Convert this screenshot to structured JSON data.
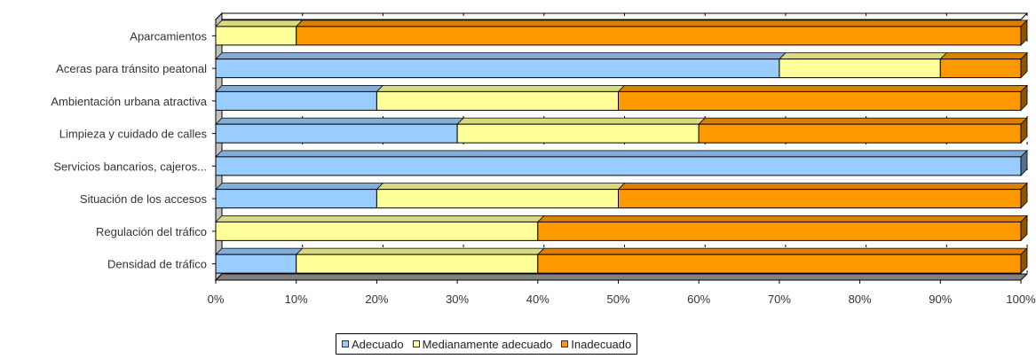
{
  "chart_data": {
    "type": "bar",
    "orientation": "horizontal",
    "stacked": "percent",
    "title": "",
    "xlabel": "",
    "ylabel": "",
    "categories": [
      "Aparcamientos",
      "Aceras para tránsito peatonal",
      "Ambientación urbana atractiva",
      "Limpieza y cuidado de calles",
      "Servicios bancarios, cajeros...",
      "Situación de los accesos",
      "Regulación del tráfico",
      "Densidad de tráfico"
    ],
    "series": [
      {
        "name": "Adecuado",
        "color": "#99ccff",
        "values": [
          0,
          70,
          20,
          30,
          100,
          20,
          0,
          10
        ]
      },
      {
        "name": "Medianamente adecuado",
        "color": "#ffff99",
        "values": [
          10,
          20,
          30,
          30,
          0,
          30,
          40,
          30
        ]
      },
      {
        "name": "Inadecuado",
        "color": "#ff9900",
        "values": [
          90,
          10,
          50,
          40,
          0,
          50,
          60,
          60
        ]
      }
    ],
    "xlim": [
      0,
      100
    ],
    "x_ticks": [
      "0%",
      "10%",
      "20%",
      "30%",
      "40%",
      "50%",
      "60%",
      "70%",
      "80%",
      "90%",
      "100%"
    ],
    "grid": "dashed vertical",
    "legend_position": "bottom"
  }
}
